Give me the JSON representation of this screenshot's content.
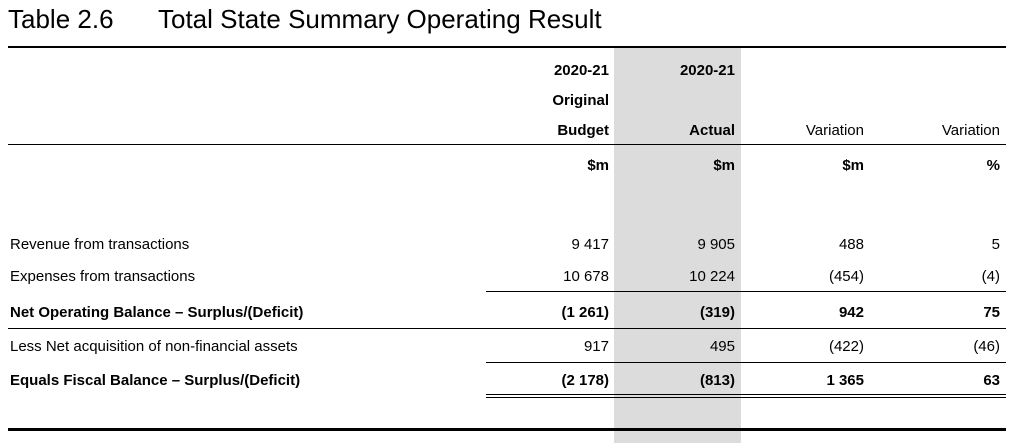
{
  "title": {
    "number": "Table 2.6",
    "text": "Total State Summary Operating Result"
  },
  "columns": [
    {
      "line1": "2020-21",
      "line2": "Original",
      "line3": "Budget",
      "unit": "$m"
    },
    {
      "line1": "2020-21",
      "line3": "Actual",
      "unit": "$m"
    },
    {
      "line3": "Variation",
      "unit": "$m"
    },
    {
      "line3": "Variation",
      "unit": "%"
    }
  ],
  "rows": [
    {
      "label": "Revenue from transactions",
      "values": [
        "9 417",
        "9 905",
        "488",
        "5"
      ]
    },
    {
      "label": "Expenses from transactions",
      "values": [
        "10 678",
        "10 224",
        "(454)",
        "(4)"
      ]
    },
    {
      "label": "Net Operating Balance – Surplus/(Deficit)",
      "values": [
        "(1 261)",
        "(319)",
        "942",
        "75"
      ]
    },
    {
      "label": "Less Net acquisition of non-financial assets",
      "values": [
        "917",
        "495",
        "(422)",
        "(46)"
      ]
    },
    {
      "label": "Equals Fiscal Balance – Surplus/(Deficit)",
      "values": [
        "(2 178)",
        "(813)",
        "1 365",
        "63"
      ]
    }
  ]
}
